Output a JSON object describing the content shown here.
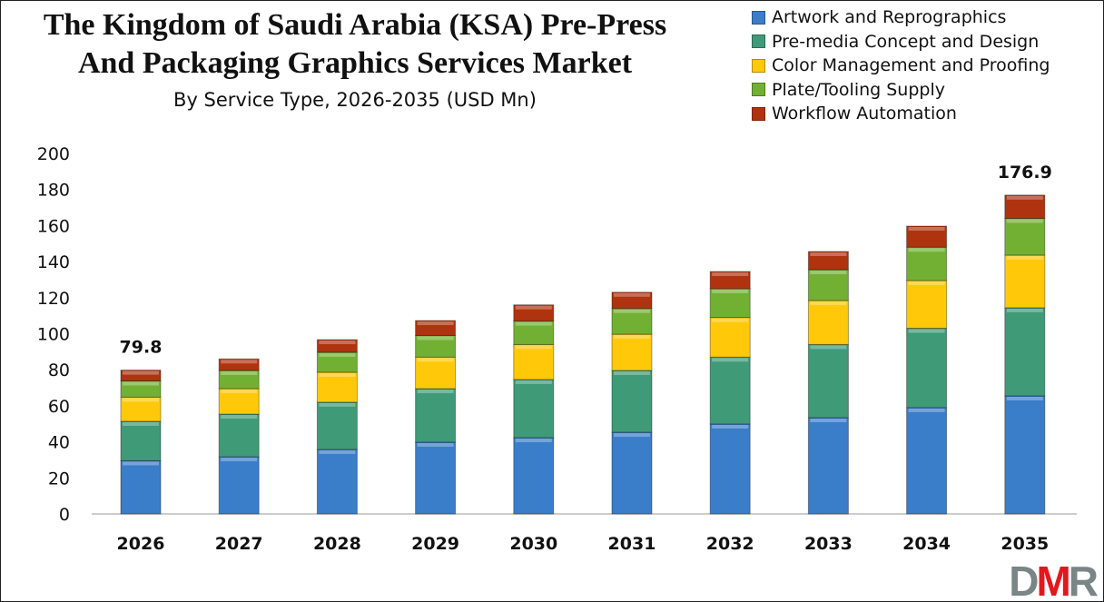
{
  "chart_data": {
    "type": "bar",
    "stacked": true,
    "title_lines": [
      "The Kingdom of Saudi Arabia (KSA) Pre-Press",
      "And Packaging Graphics Services Market"
    ],
    "subtitle": "By Service Type, 2026-2035 (USD Mn)",
    "xlabel": "",
    "ylabel": "",
    "ylim": [
      0,
      200
    ],
    "yticks": [
      "0",
      "20",
      "40",
      "60",
      "80",
      "100",
      "120",
      "140",
      "160",
      "180",
      "200"
    ],
    "grid": false,
    "legend_position": "top-right",
    "categories": [
      "2026",
      "2027",
      "2028",
      "2029",
      "2030",
      "2031",
      "2032",
      "2033",
      "2034",
      "2035"
    ],
    "series": [
      {
        "name": "Artwork and Reprographics",
        "color": "#3a7dc9",
        "values": [
          29.5,
          31.7,
          35.8,
          39.8,
          42.3,
          45.3,
          49.9,
          53.4,
          59.0,
          65.5
        ]
      },
      {
        "name": "Pre-media Concept and Design",
        "color": "#3f9a78",
        "values": [
          21.9,
          23.7,
          26.2,
          29.7,
          32.3,
          34.3,
          37.1,
          40.6,
          44.0,
          48.9
        ]
      },
      {
        "name": "Color Management and Proofing",
        "color": "#ffc90a",
        "values": [
          13.4,
          14.1,
          16.6,
          17.5,
          19.4,
          20.1,
          22.0,
          24.4,
          26.5,
          29.2
        ]
      },
      {
        "name": "Plate/Tooling Supply",
        "color": "#72b034",
        "values": [
          9.0,
          10.1,
          11.1,
          12.0,
          13.0,
          14.3,
          16.0,
          17.1,
          18.5,
          20.4
        ]
      },
      {
        "name": "Workflow Automation",
        "color": "#b0330f",
        "values": [
          6.0,
          6.4,
          7.0,
          8.3,
          9.0,
          9.0,
          9.5,
          10.1,
          11.7,
          12.9
        ]
      }
    ],
    "annotations": [
      {
        "category": "2026",
        "text": "79.8"
      },
      {
        "category": "2035",
        "text": "176.9"
      }
    ]
  },
  "logo": {
    "text_d": "D",
    "text_m": "M",
    "text_r": "R",
    "gray": "#7a8585",
    "red": "#e3171d"
  }
}
